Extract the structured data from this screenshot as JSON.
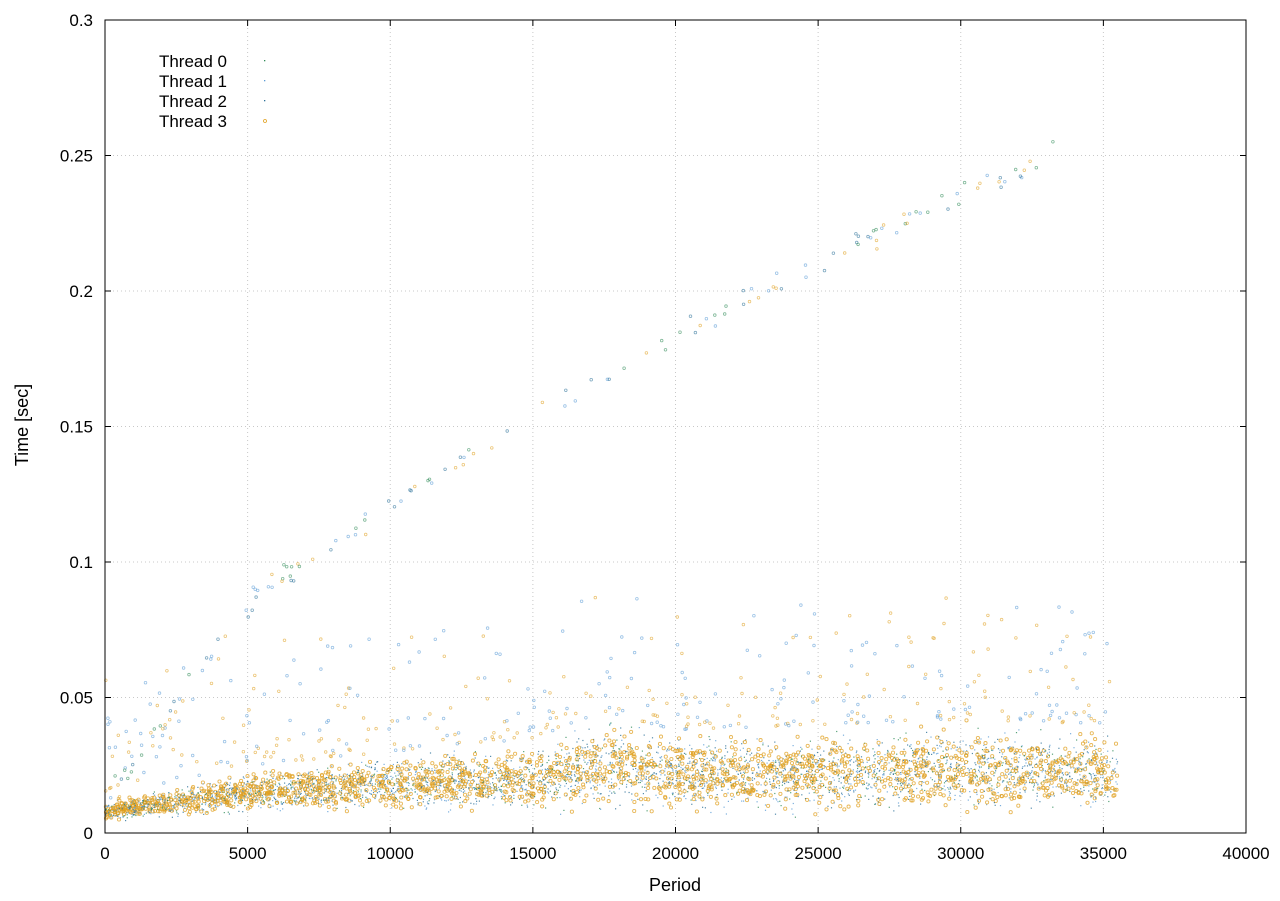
{
  "chart_data": {
    "type": "scatter",
    "title": "",
    "xlabel": "Period",
    "ylabel": "Time [sec]",
    "xlim": [
      0,
      40000
    ],
    "ylim": [
      0,
      0.3
    ],
    "x_ticks": [
      0,
      5000,
      10000,
      15000,
      20000,
      25000,
      30000,
      35000,
      40000
    ],
    "y_ticks": [
      0,
      0.05,
      0.1,
      0.15,
      0.2,
      0.25,
      0.3
    ],
    "grid": true,
    "legend_position": "top-left",
    "series": [
      {
        "name": "Thread 0",
        "color": "#2e8b57",
        "marker": "dot"
      },
      {
        "name": "Thread 1",
        "color": "#5a9bd5",
        "marker": "dot"
      },
      {
        "name": "Thread 2",
        "color": "#2a6f97",
        "marker": "dot"
      },
      {
        "name": "Thread 3",
        "color": "#e0a020",
        "marker": "circle"
      }
    ],
    "point_density": {
      "x_range": [
        0,
        35500
      ],
      "band": [
        {
          "x": 0,
          "y_low": 0.005,
          "y_mid": 0.008,
          "y_high": 0.012
        },
        {
          "x": 5000,
          "y_low": 0.008,
          "y_mid": 0.015,
          "y_high": 0.025
        },
        {
          "x": 10000,
          "y_low": 0.008,
          "y_mid": 0.018,
          "y_high": 0.03
        },
        {
          "x": 15000,
          "y_low": 0.008,
          "y_mid": 0.02,
          "y_high": 0.035
        },
        {
          "x": 17500,
          "y_low": 0.01,
          "y_mid": 0.025,
          "y_high": 0.045
        },
        {
          "x": 20000,
          "y_low": 0.008,
          "y_mid": 0.022,
          "y_high": 0.038
        },
        {
          "x": 25000,
          "y_low": 0.008,
          "y_mid": 0.022,
          "y_high": 0.04
        },
        {
          "x": 30000,
          "y_low": 0.008,
          "y_mid": 0.024,
          "y_high": 0.042
        },
        {
          "x": 35500,
          "y_low": 0.008,
          "y_mid": 0.022,
          "y_high": 0.04
        }
      ],
      "outlier_trend": [
        {
          "x": 0,
          "y": 0.01
        },
        {
          "x": 5000,
          "y": 0.085
        },
        {
          "x": 10000,
          "y": 0.12
        },
        {
          "x": 15000,
          "y": 0.155
        },
        {
          "x": 20000,
          "y": 0.185
        },
        {
          "x": 25000,
          "y": 0.21
        },
        {
          "x": 30000,
          "y": 0.235
        },
        {
          "x": 33500,
          "y": 0.252
        }
      ]
    }
  }
}
